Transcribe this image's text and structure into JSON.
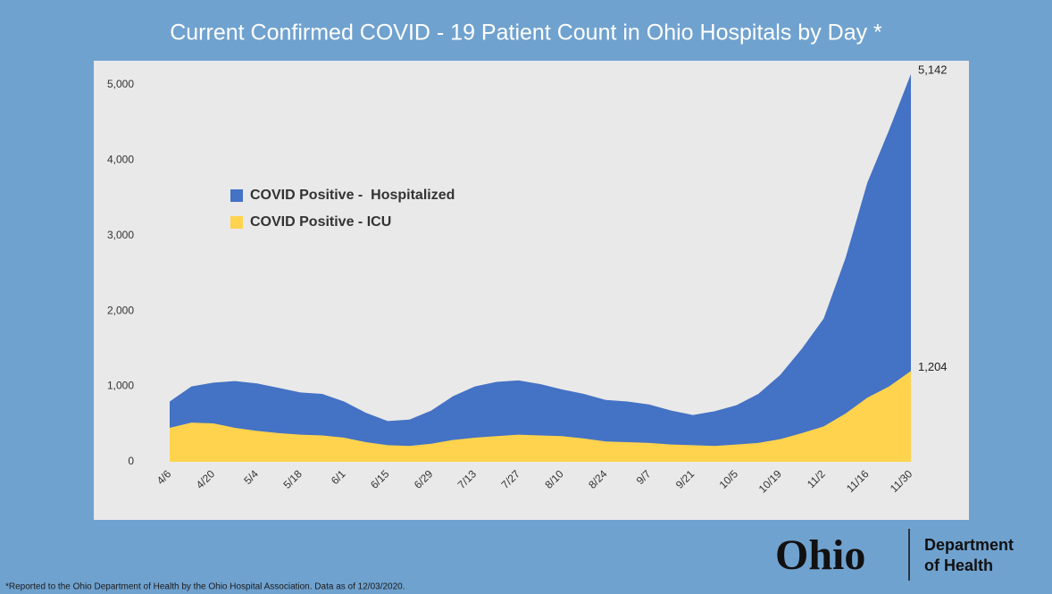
{
  "chart_data": {
    "type": "area",
    "title": "Current Confirmed COVID - 19 Patient Count in Ohio Hospitals by Day *",
    "categories": [
      "4/6",
      null,
      "4/20",
      null,
      "5/4",
      null,
      "5/18",
      null,
      "6/1",
      null,
      "6/15",
      null,
      "6/29",
      null,
      "7/13",
      null,
      "7/27",
      null,
      "8/10",
      null,
      "8/24",
      null,
      "9/7",
      null,
      "9/21",
      null,
      "10/5",
      null,
      "10/19",
      null,
      "11/2",
      null,
      "11/16",
      null,
      "11/30"
    ],
    "series": [
      {
        "name": "COVID Positive -  Hospitalized",
        "color": "#4472c4",
        "values": [
          800,
          1000,
          1050,
          1070,
          1040,
          980,
          920,
          900,
          800,
          650,
          540,
          560,
          680,
          870,
          1000,
          1060,
          1080,
          1030,
          960,
          900,
          820,
          800,
          760,
          680,
          620,
          670,
          750,
          900,
          1150,
          1500,
          1900,
          2700,
          3700,
          4400,
          5142
        ],
        "value_labels": [
          null,
          null,
          null,
          null,
          null,
          null,
          null,
          null,
          null,
          null,
          null,
          null,
          null,
          null,
          null,
          null,
          null,
          null,
          null,
          null,
          null,
          null,
          null,
          null,
          null,
          null,
          null,
          null,
          null,
          null,
          null,
          null,
          null,
          null,
          "5,142"
        ]
      },
      {
        "name": "COVID Positive - ICU",
        "color": "#ffd34d",
        "values": [
          450,
          520,
          510,
          450,
          410,
          380,
          360,
          350,
          320,
          260,
          220,
          210,
          240,
          290,
          320,
          340,
          360,
          350,
          340,
          310,
          270,
          260,
          250,
          230,
          220,
          210,
          230,
          250,
          300,
          380,
          470,
          640,
          850,
          1000,
          1204
        ],
        "value_labels": [
          null,
          null,
          null,
          null,
          null,
          null,
          null,
          null,
          null,
          null,
          null,
          null,
          null,
          null,
          null,
          null,
          null,
          null,
          null,
          null,
          null,
          null,
          null,
          null,
          null,
          null,
          null,
          null,
          null,
          null,
          null,
          null,
          null,
          null,
          "1,204"
        ]
      }
    ],
    "ylim": [
      0,
      5200
    ],
    "yticks": [
      0,
      {
        "value": 1000,
        "label": "1,000"
      },
      {
        "value": 2000,
        "label": "2,000"
      },
      {
        "value": 3000,
        "label": "3,000"
      },
      {
        "value": 4000,
        "label": "4,000"
      },
      {
        "value": 5000,
        "label": "5,000"
      }
    ],
    "grid": false,
    "legend": "upper left",
    "footnote": "*Reported to the Ohio Department of Health by the Ohio Hospital Association. Data as of 12/03/2020.",
    "logo": {
      "name": "Ohio",
      "line1": "Department",
      "line2": "of Health"
    }
  }
}
